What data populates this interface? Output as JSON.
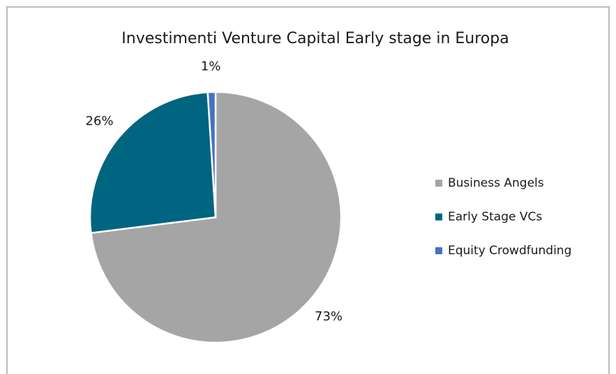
{
  "chart_data": {
    "type": "pie",
    "title": "Investimenti Venture Capital Early stage in Europa",
    "categories": [
      "Business Angels",
      "Early Stage VCs",
      "Equity Crowdfunding"
    ],
    "values": [
      73,
      26,
      1
    ],
    "value_labels": [
      "73%",
      "26%",
      "1%"
    ],
    "colors": [
      "#a5a5a5",
      "#006580",
      "#4472c4"
    ],
    "legend": "right"
  }
}
